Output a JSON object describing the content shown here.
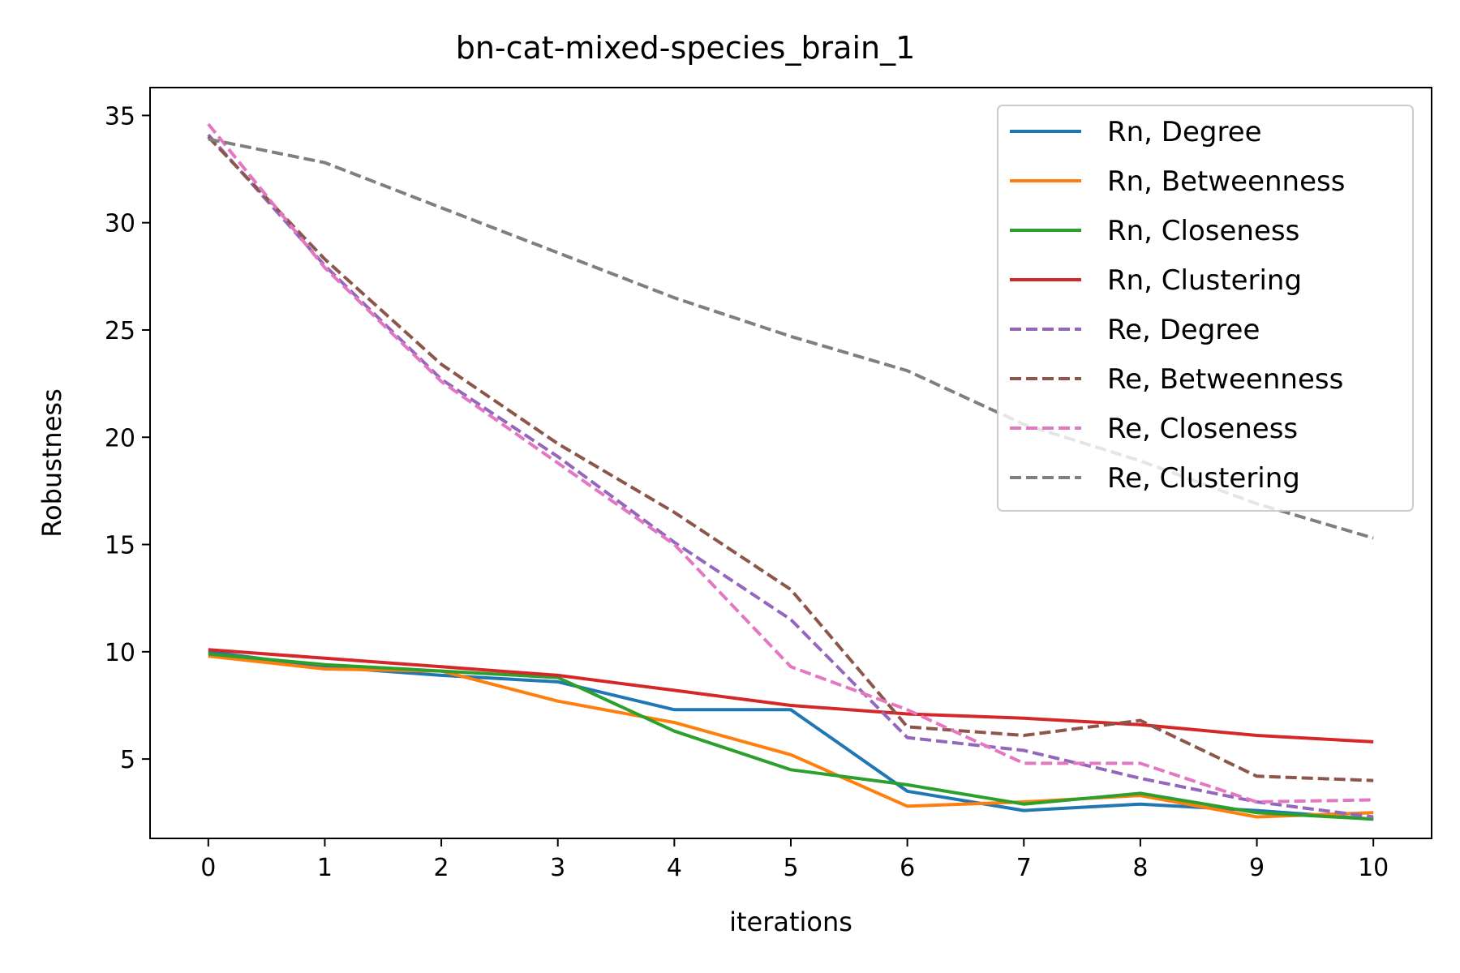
{
  "chart_data": {
    "type": "line",
    "title": "bn-cat-mixed-species_brain_1",
    "xlabel": "iterations",
    "ylabel": "Robustness",
    "x": [
      0,
      1,
      2,
      3,
      4,
      5,
      6,
      7,
      8,
      9,
      10
    ],
    "xlim": [
      -0.5,
      10.5
    ],
    "ylim": [
      1.3,
      36.3
    ],
    "yticks": [
      5,
      10,
      15,
      20,
      25,
      30,
      35
    ],
    "grid": false,
    "legend_position": "upper right",
    "series": [
      {
        "name": "Rn, Degree",
        "color": "#1f77b4",
        "dash": "solid",
        "values": [
          10.0,
          9.3,
          8.9,
          8.6,
          7.3,
          7.3,
          3.5,
          2.6,
          2.9,
          2.6,
          2.2
        ]
      },
      {
        "name": "Rn, Betweenness",
        "color": "#ff7f0e",
        "dash": "solid",
        "values": [
          9.8,
          9.2,
          9.1,
          7.7,
          6.7,
          5.2,
          2.8,
          3.0,
          3.3,
          2.3,
          2.5
        ]
      },
      {
        "name": "Rn, Closeness",
        "color": "#2ca02c",
        "dash": "solid",
        "values": [
          9.9,
          9.4,
          9.1,
          8.8,
          6.3,
          4.5,
          3.8,
          2.9,
          3.4,
          2.5,
          2.2
        ]
      },
      {
        "name": "Rn, Clustering",
        "color": "#d62728",
        "dash": "solid",
        "values": [
          10.1,
          9.7,
          9.3,
          8.9,
          8.2,
          7.5,
          7.1,
          6.9,
          6.6,
          6.1,
          5.8
        ]
      },
      {
        "name": "Re, Degree",
        "color": "#9467bd",
        "dash": "dashed",
        "values": [
          34.1,
          28.0,
          22.7,
          19.1,
          15.1,
          11.5,
          6.0,
          5.4,
          4.1,
          3.0,
          2.3
        ]
      },
      {
        "name": "Re, Betweenness",
        "color": "#8c564b",
        "dash": "dashed",
        "values": [
          34.0,
          28.3,
          23.4,
          19.7,
          16.5,
          12.9,
          6.5,
          6.1,
          6.8,
          4.2,
          4.0
        ]
      },
      {
        "name": "Re, Closeness",
        "color": "#e377c2",
        "dash": "dashed",
        "values": [
          34.6,
          27.9,
          22.6,
          18.8,
          15.0,
          9.3,
          7.3,
          4.8,
          4.8,
          3.0,
          3.1
        ]
      },
      {
        "name": "Re, Clustering",
        "color": "#7f7f7f",
        "dash": "dashed",
        "values": [
          33.9,
          32.8,
          30.7,
          28.6,
          26.5,
          24.7,
          23.1,
          20.6,
          18.9,
          16.9,
          15.3
        ]
      }
    ]
  }
}
